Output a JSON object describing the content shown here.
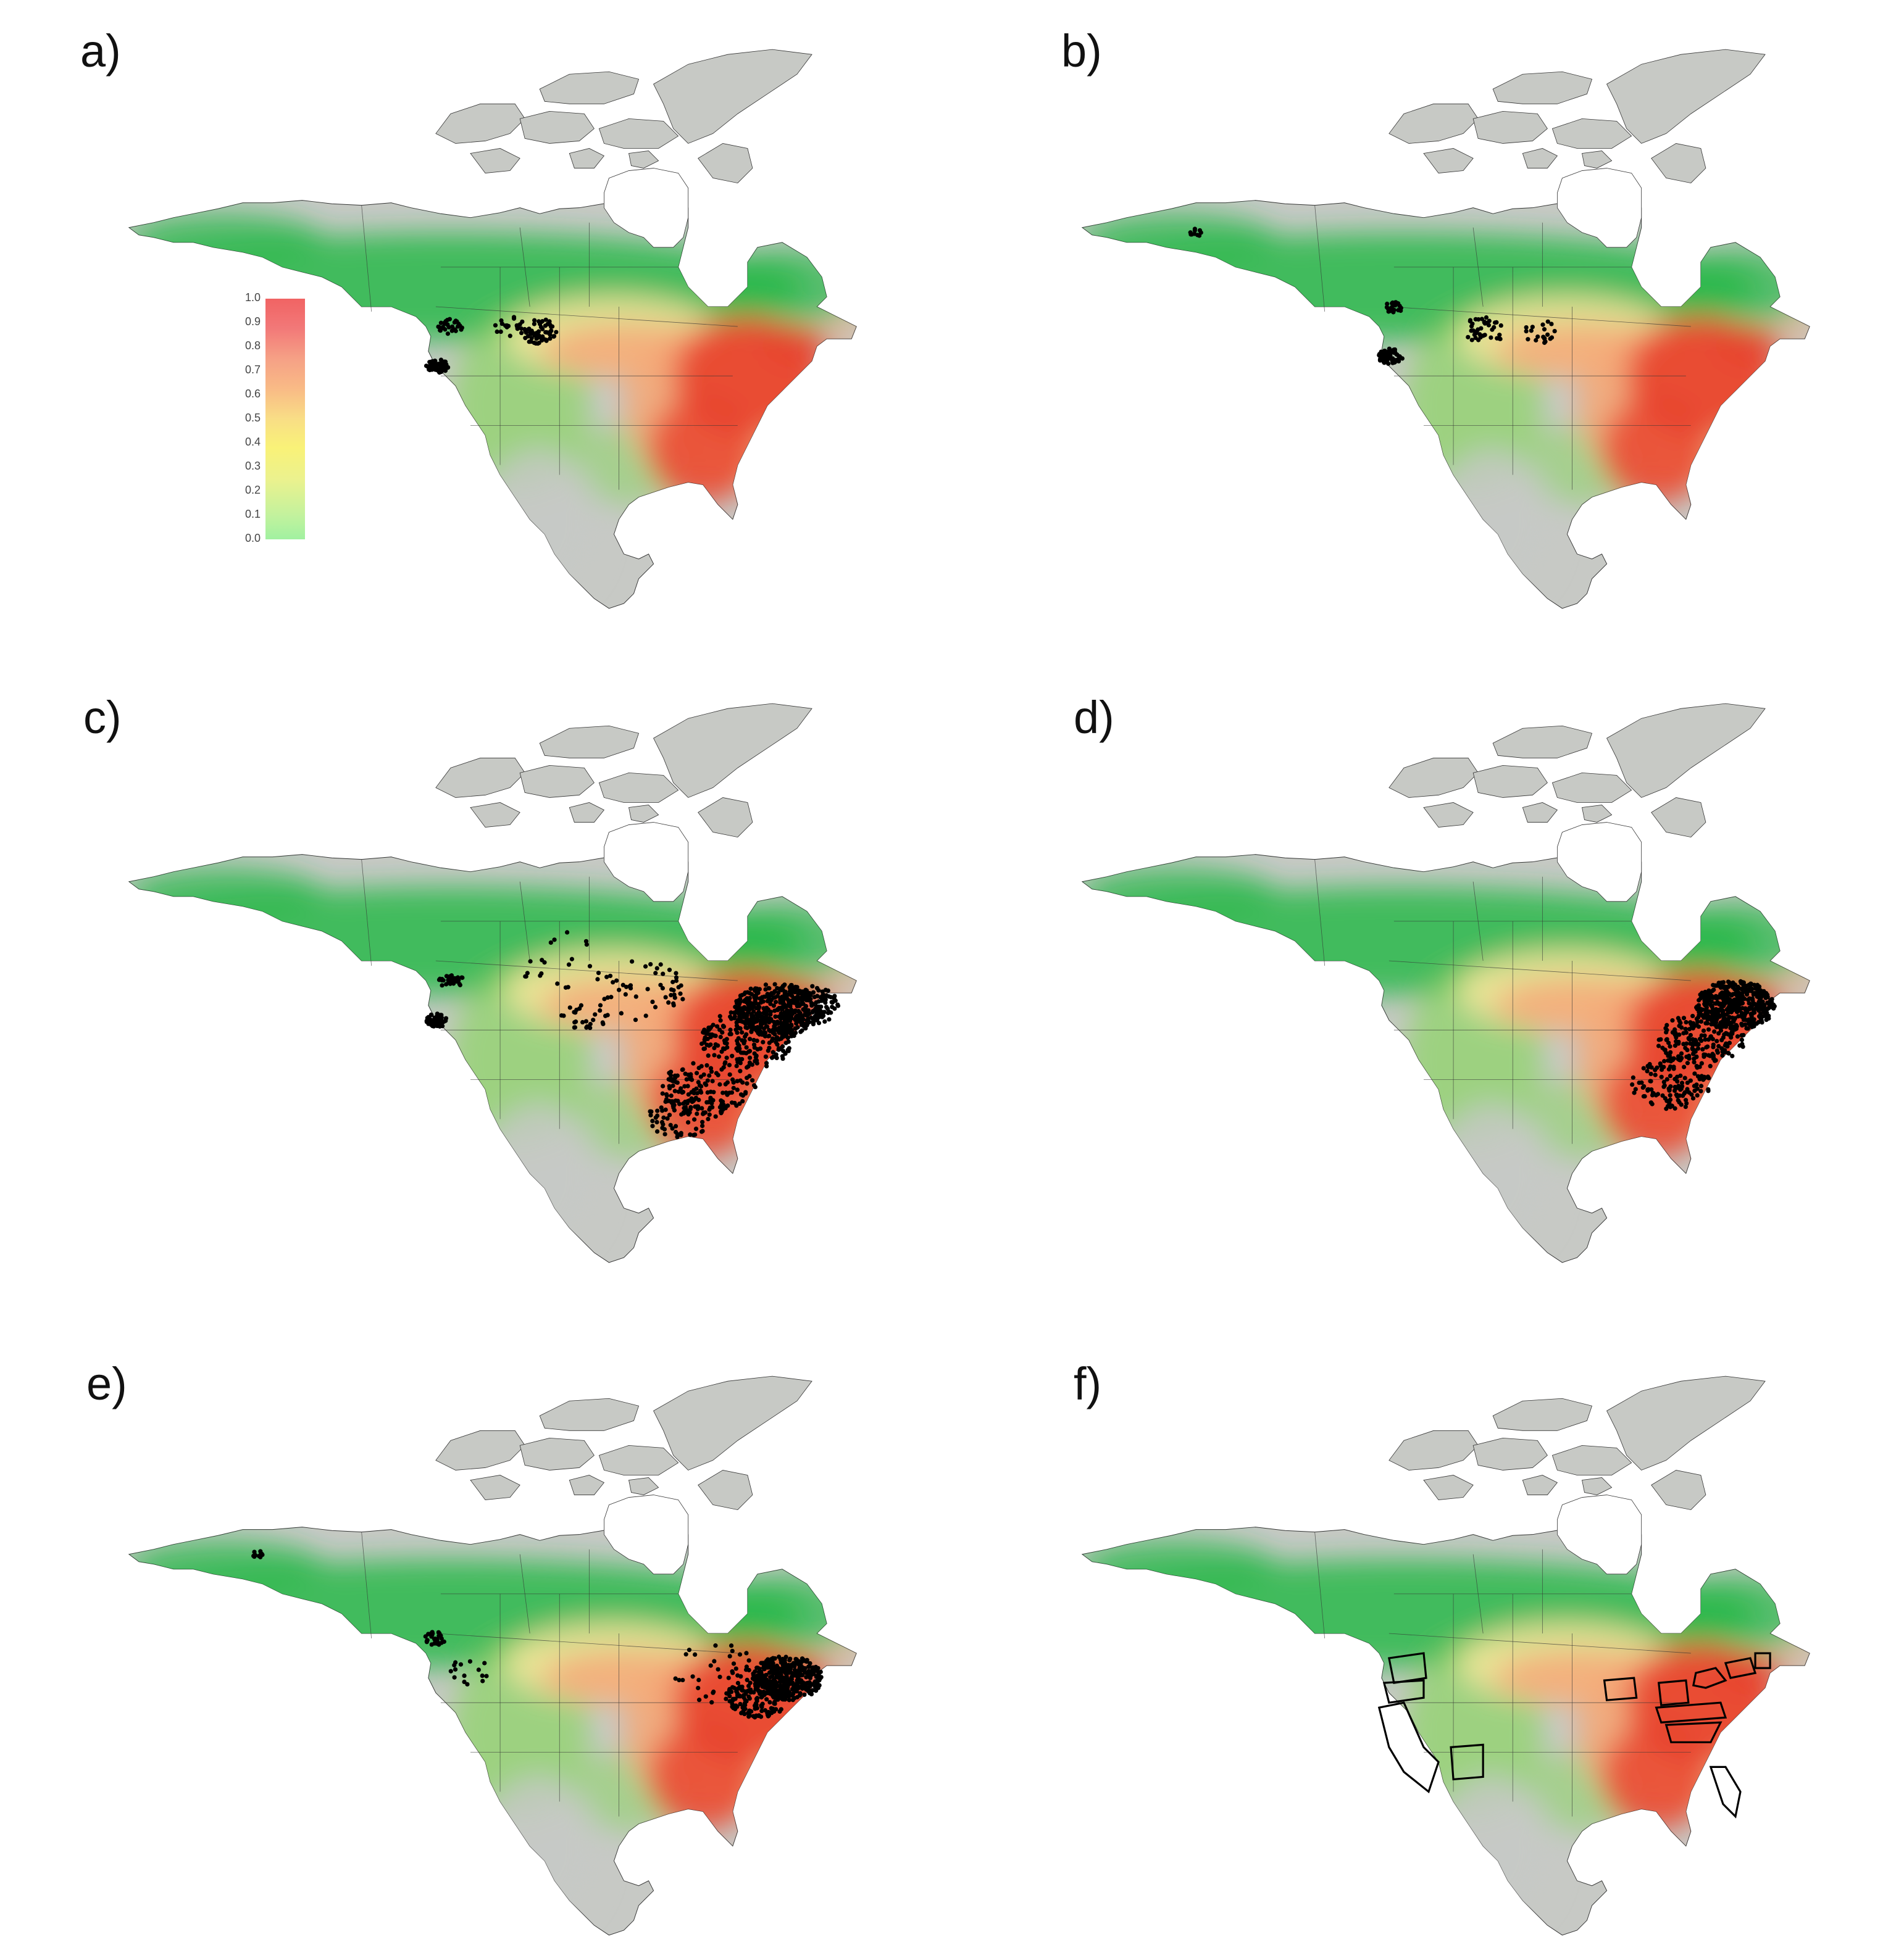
{
  "panels": [
    {
      "label": "a)",
      "show_legend": true,
      "dot_pattern": "west_plains"
    },
    {
      "label": "b)",
      "show_legend": false,
      "dot_pattern": "west_plains_sparse"
    },
    {
      "label": "c)",
      "show_legend": false,
      "dot_pattern": "full"
    },
    {
      "label": "d)",
      "show_legend": false,
      "dot_pattern": "northeast"
    },
    {
      "label": "e)",
      "show_legend": false,
      "dot_pattern": "northeast_west"
    },
    {
      "label": "f)",
      "show_legend": false,
      "dot_pattern": "states_outline"
    }
  ],
  "legend": {
    "ticks": [
      "0.0",
      "0.1",
      "0.2",
      "0.3",
      "0.4",
      "0.5",
      "0.6",
      "0.7",
      "0.8",
      "0.9",
      "1.0"
    ],
    "min": 0.0,
    "max": 1.0
  },
  "colors": {
    "land_gray": "#c7c9c5",
    "green": "#28b84a",
    "light_green": "#8fd46a",
    "yellow": "#f3e79a",
    "orange": "#f4a878",
    "red": "#e8412c",
    "dot": "#000000",
    "border": "#333333"
  }
}
